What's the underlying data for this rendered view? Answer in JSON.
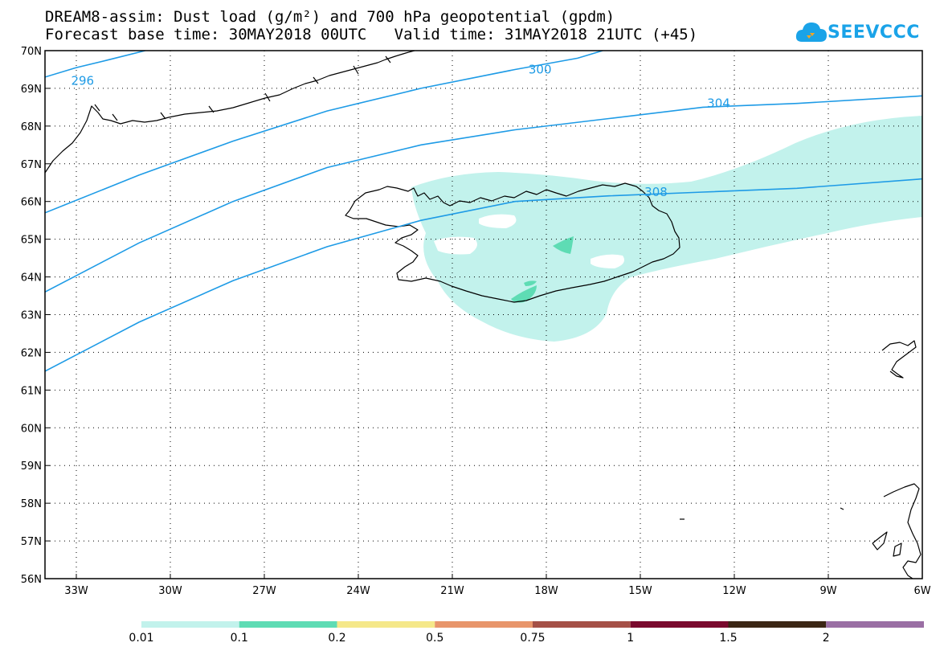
{
  "title": {
    "line1": "DREAM8-assim: Dust load (g/m²) and 700 hPa geopotential (gpdm)",
    "line2": "Forecast base time: 30MAY2018 00UTC   Valid time: 31MAY2018 21UTC (+45)"
  },
  "logo": {
    "text": "SEEVCCC",
    "icon": "cloud-icon",
    "color": "#1aa3e8"
  },
  "map": {
    "lon_range": [
      -34,
      -6
    ],
    "lat_range": [
      56,
      70
    ],
    "lon_ticks": [
      {
        "value": -33,
        "label": "33W"
      },
      {
        "value": -30,
        "label": "30W"
      },
      {
        "value": -27,
        "label": "27W"
      },
      {
        "value": -24,
        "label": "24W"
      },
      {
        "value": -21,
        "label": "21W"
      },
      {
        "value": -18,
        "label": "18W"
      },
      {
        "value": -15,
        "label": "15W"
      },
      {
        "value": -12,
        "label": "12W"
      },
      {
        "value": -9,
        "label": "9W"
      },
      {
        "value": -6,
        "label": "6W"
      }
    ],
    "lat_ticks": [
      {
        "value": 70,
        "label": "70N"
      },
      {
        "value": 69,
        "label": "69N"
      },
      {
        "value": 68,
        "label": "68N"
      },
      {
        "value": 67,
        "label": "67N"
      },
      {
        "value": 66,
        "label": "66N"
      },
      {
        "value": 65,
        "label": "65N"
      },
      {
        "value": 64,
        "label": "64N"
      },
      {
        "value": 63,
        "label": "63N"
      },
      {
        "value": 62,
        "label": "62N"
      },
      {
        "value": 61,
        "label": "61N"
      },
      {
        "value": 60,
        "label": "60N"
      },
      {
        "value": 59,
        "label": "59N"
      },
      {
        "value": 58,
        "label": "58N"
      },
      {
        "value": 57,
        "label": "57N"
      },
      {
        "value": 56,
        "label": "56N"
      }
    ],
    "gridlines": "dotted",
    "contour_color": "#1e9be6",
    "contours": [
      {
        "label": "296",
        "label_at": [
          -32.8,
          69.2
        ],
        "points": [
          [
            -34,
            69.3
          ],
          [
            -33,
            69.55
          ],
          [
            -32,
            69.75
          ],
          [
            -30.8,
            70
          ]
        ]
      },
      {
        "label": "300",
        "label_at": [
          -18.2,
          69.5
        ],
        "points": [
          [
            -34,
            65.7
          ],
          [
            -31,
            66.7
          ],
          [
            -28,
            67.6
          ],
          [
            -25,
            68.4
          ],
          [
            -22,
            69.0
          ],
          [
            -19,
            69.5
          ],
          [
            -17,
            69.8
          ],
          [
            -16.2,
            70
          ]
        ]
      },
      {
        "label": "304",
        "label_at": [
          -12.5,
          68.6
        ],
        "points": [
          [
            -34,
            63.6
          ],
          [
            -31,
            64.9
          ],
          [
            -28,
            66.0
          ],
          [
            -25,
            66.9
          ],
          [
            -22,
            67.5
          ],
          [
            -19,
            67.9
          ],
          [
            -16,
            68.2
          ],
          [
            -13,
            68.5
          ],
          [
            -10,
            68.6
          ],
          [
            -6,
            68.8
          ]
        ]
      },
      {
        "label": "308",
        "label_at": [
          -14.5,
          66.25
        ],
        "points": [
          [
            -34,
            61.5
          ],
          [
            -31,
            62.8
          ],
          [
            -28,
            63.9
          ],
          [
            -25,
            64.8
          ],
          [
            -22,
            65.5
          ],
          [
            -19,
            66.0
          ],
          [
            -16,
            66.15
          ],
          [
            -13,
            66.25
          ],
          [
            -10,
            66.35
          ],
          [
            -6,
            66.6
          ]
        ]
      }
    ]
  },
  "colorbar": {
    "segments": [
      {
        "color": "#c2f2ec"
      },
      {
        "color": "#5edcb4"
      },
      {
        "color": "#f5e88a"
      },
      {
        "color": "#e8956b"
      },
      {
        "color": "#a55047"
      },
      {
        "color": "#7a0a2e"
      },
      {
        "color": "#3b2614"
      },
      {
        "color": "#9a6fa4"
      }
    ],
    "labels": [
      "0.01",
      "0.1",
      "0.2",
      "0.5",
      "0.75",
      "1",
      "1.5",
      "2"
    ]
  }
}
